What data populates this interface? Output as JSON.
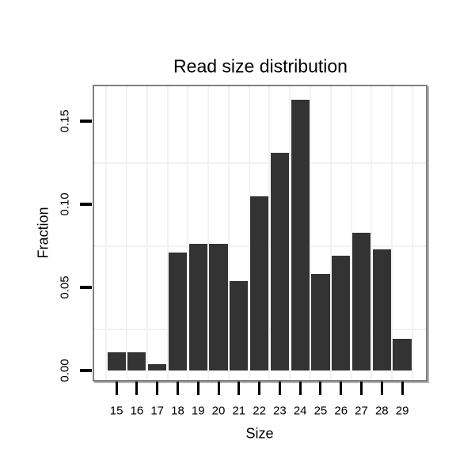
{
  "page": {
    "background": "#ffffff"
  },
  "chart_data": {
    "type": "bar",
    "title": "Read size distribution",
    "xlabel": "Size",
    "ylabel": "Fraction",
    "categories": [
      15,
      16,
      17,
      18,
      19,
      20,
      21,
      22,
      23,
      24,
      25,
      26,
      27,
      28,
      29
    ],
    "values": [
      0.011,
      0.011,
      0.004,
      0.071,
      0.076,
      0.076,
      0.054,
      0.105,
      0.131,
      0.163,
      0.058,
      0.069,
      0.083,
      0.073,
      0.019
    ],
    "x_tick_labels": [
      "15",
      "16",
      "17",
      "18",
      "19",
      "20",
      "21",
      "22",
      "23",
      "24",
      "25",
      "26",
      "27",
      "28",
      "29"
    ],
    "y_ticks": [
      0,
      0.05,
      0.1,
      0.15
    ],
    "y_tick_labels": [
      "0.00",
      "0.05",
      "0.10",
      "0.15"
    ],
    "xlim": [
      13.91,
      30.16
    ],
    "ylim": [
      -0.0057,
      0.171
    ],
    "bar_width_units": 0.9,
    "grid": {
      "major_visible": false,
      "minor_y": [
        0.025,
        0.075,
        0.125
      ],
      "minor_x": [
        14.5,
        15.5,
        16.5,
        17.5,
        18.5,
        19.5,
        20.5,
        21.5,
        22.5,
        23.5,
        24.5,
        25.5,
        26.5,
        27.5,
        28.5,
        29.5
      ]
    },
    "legend_position": "none",
    "colors": {
      "bar": "#333333",
      "panel_border": "#7f7f7f",
      "panel_shadow": "#b3b3b3",
      "grid_minor": "#f2f2f2",
      "tick": "#000000",
      "axis_text": "#000000",
      "background": "#ffffff"
    }
  }
}
